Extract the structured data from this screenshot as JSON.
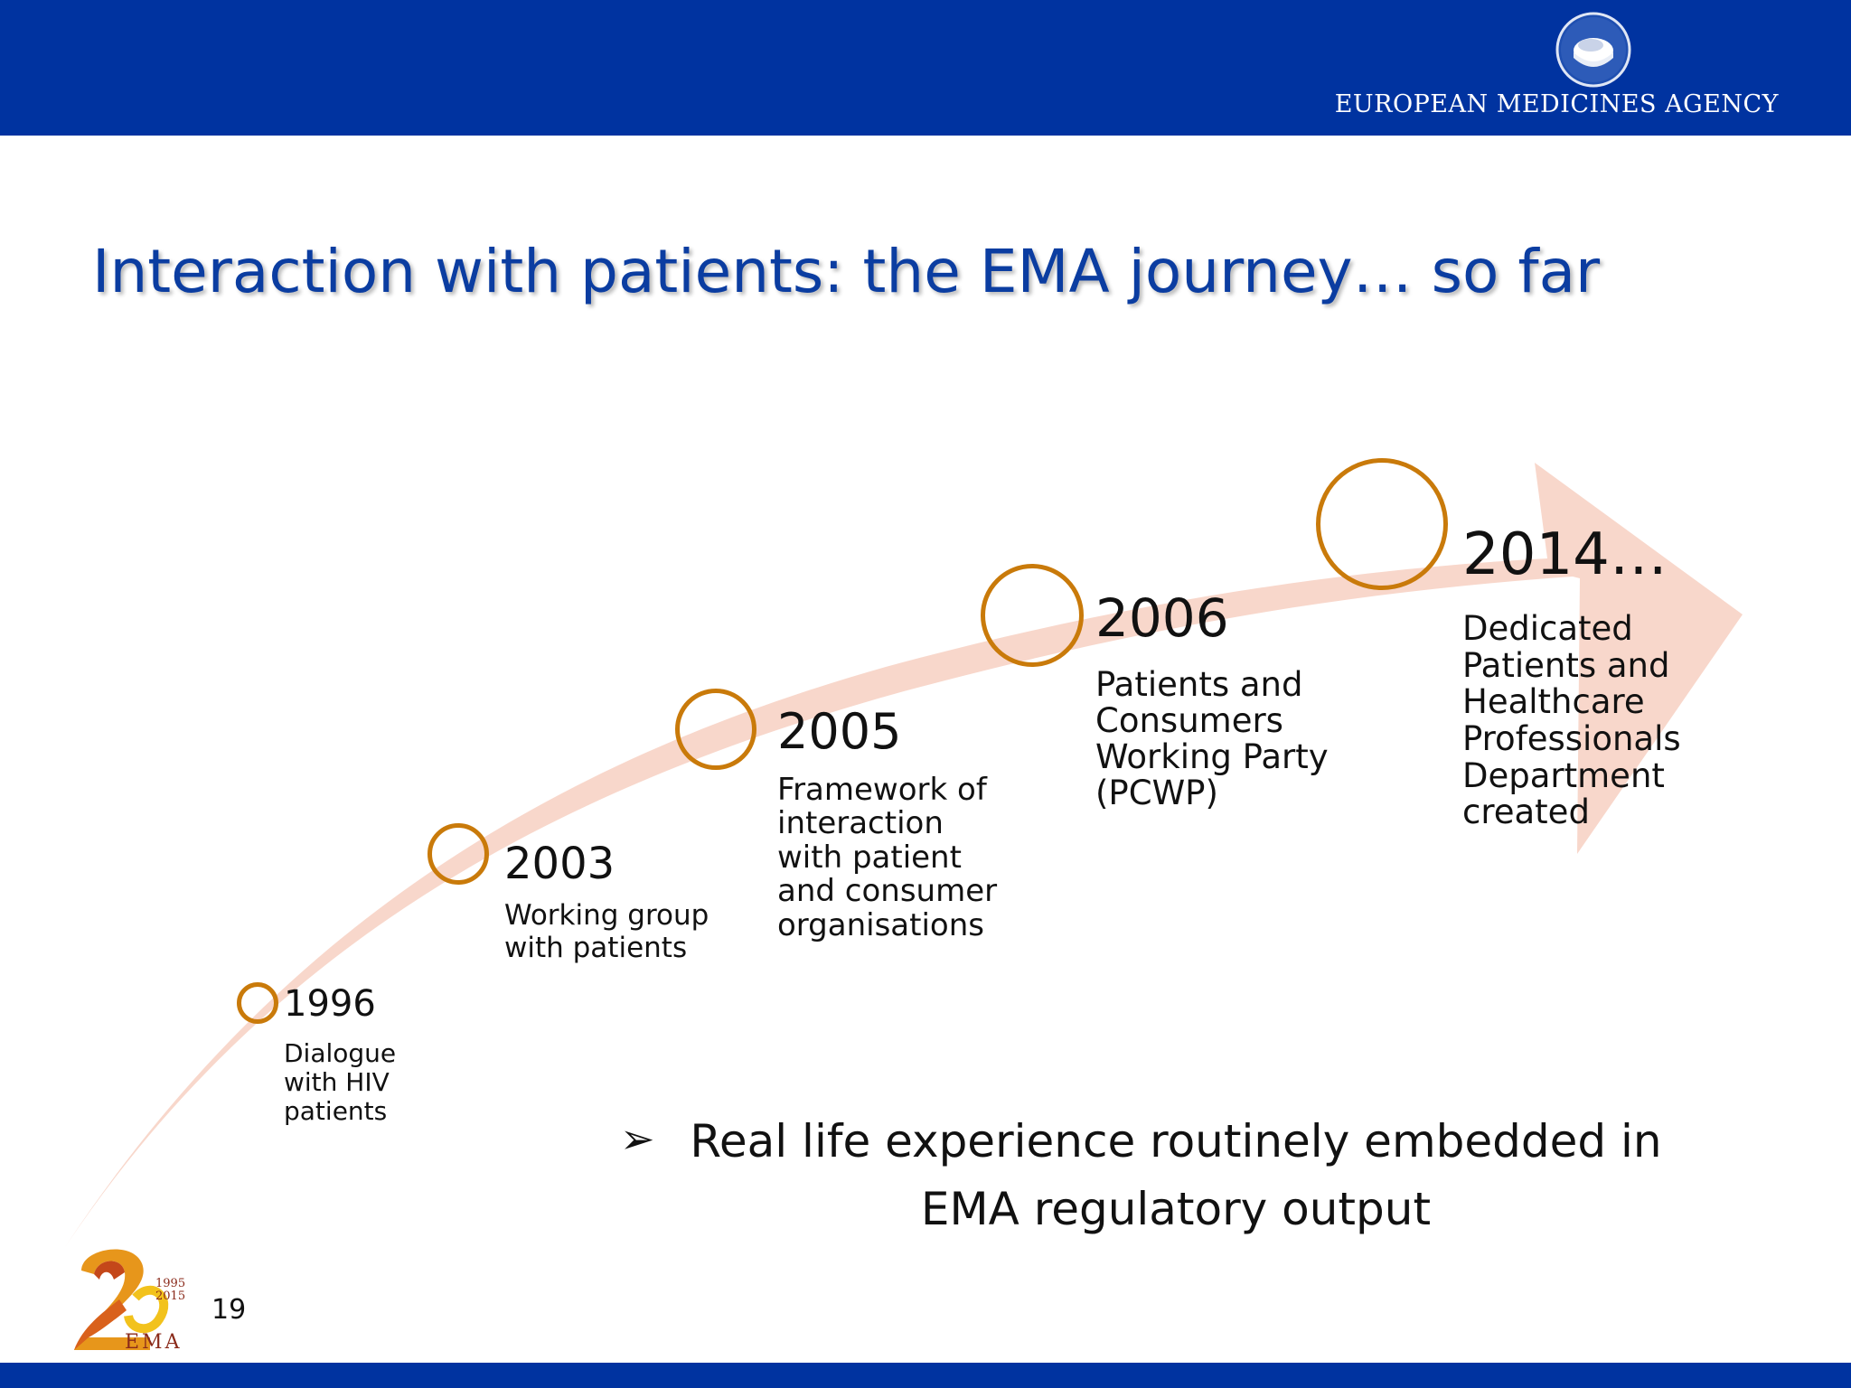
{
  "header": {
    "agency_name": "EUROPEAN MEDICINES AGENCY",
    "logo_icon": "ema-logo-icon",
    "bar_color": "#0033a0"
  },
  "slide": {
    "title": "Interaction with patients: the EMA journey… so far",
    "number": "19"
  },
  "timeline": {
    "ring_color": "#c97a0a",
    "arrow_color": "#f8d7cb",
    "milestones": [
      {
        "year": "1996",
        "description": "Dialogue\nwith HIV\npatients"
      },
      {
        "year": "2003",
        "description": "Working group\nwith patients"
      },
      {
        "year": "2005",
        "description": "Framework of\ninteraction\nwith patient\nand consumer\norganisations"
      },
      {
        "year": "2006",
        "description": "Patients and\nConsumers\nWorking Party\n(PCWP)"
      },
      {
        "year": "2014…",
        "description": "Dedicated\nPatients and\nHealthcare\nProfessionals\nDepartment\ncreated"
      }
    ]
  },
  "bullet": {
    "marker": "➢",
    "text": "Real life experience routinely embedded in EMA regulatory output"
  },
  "anniversary_logo": {
    "numeral": "2",
    "years_top": "1995",
    "years_bottom": "2015",
    "acronym": "EMA"
  }
}
